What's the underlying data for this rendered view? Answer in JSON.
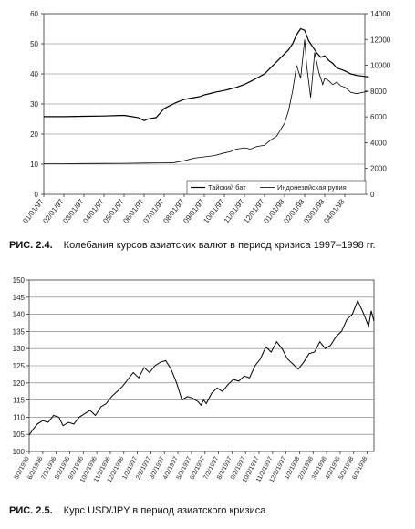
{
  "figure1": {
    "caption_number": "РИС. 2.4.",
    "caption_text": "Колебания курсов азиатских валют в период кризиса 1997–1998 гг.",
    "chart_data": {
      "type": "line",
      "x_labels": [
        "01/01/97",
        "02/01/97",
        "03/01/97",
        "04/01/97",
        "05/01/97",
        "06/01/97",
        "07/01/97",
        "08/01/97",
        "09/01/97",
        "10/01/97",
        "11/01/97",
        "12/01/97",
        "01/01/98",
        "02/01/98",
        "03/01/98",
        "04/01/98"
      ],
      "y_left": {
        "min": 0,
        "max": 60,
        "ticks": [
          0,
          10,
          20,
          30,
          40,
          50,
          60
        ]
      },
      "y_right": {
        "min": 0,
        "max": 14000,
        "ticks": [
          0,
          2000,
          4000,
          6000,
          8000,
          10000,
          12000,
          14000
        ]
      },
      "series": [
        {
          "name": "Тайский бат",
          "axis": "left",
          "x": [
            0,
            1,
            2,
            3,
            4,
            4.7,
            5,
            5.2,
            5.6,
            6,
            6.3,
            6.6,
            7,
            7.4,
            7.8,
            8,
            8.3,
            8.6,
            9,
            9.3,
            9.6,
            10,
            10.3,
            10.6,
            11,
            11.3,
            11.6,
            11.9,
            12.2,
            12.4,
            12.6,
            12.8,
            13,
            13.2,
            13.4,
            13.6,
            13.8,
            14,
            14.2,
            14.4,
            14.6,
            15,
            15.3,
            15.6,
            16.2
          ],
          "y": [
            25.8,
            25.8,
            25.9,
            26.0,
            26.2,
            25.5,
            24.5,
            25.0,
            25.5,
            28.5,
            29.5,
            30.5,
            31.5,
            32.0,
            32.5,
            33.0,
            33.5,
            34.0,
            34.5,
            35.0,
            35.5,
            36.5,
            37.5,
            38.5,
            40.0,
            42.0,
            44.0,
            46.0,
            48.0,
            50.0,
            53.0,
            55.0,
            54.5,
            51.0,
            49.0,
            47.0,
            45.5,
            46.0,
            44.5,
            43.5,
            42.0,
            41.0,
            40.0,
            39.5,
            39.0
          ]
        },
        {
          "name": "Индонезийская рупия",
          "axis": "right",
          "x": [
            0,
            1,
            2,
            3,
            4,
            5,
            6,
            6.5,
            7,
            7.5,
            8,
            8.5,
            9,
            9.3,
            9.6,
            10,
            10.3,
            10.6,
            11,
            11.3,
            11.6,
            11.8,
            12,
            12.2,
            12.4,
            12.6,
            12.8,
            13,
            13.1,
            13.3,
            13.5,
            13.7,
            13.9,
            14,
            14.2,
            14.4,
            14.6,
            14.8,
            15,
            15.3,
            15.6,
            16.2
          ],
          "y": [
            2360,
            2370,
            2380,
            2390,
            2400,
            2420,
            2430,
            2450,
            2600,
            2800,
            2900,
            3000,
            3200,
            3300,
            3500,
            3600,
            3500,
            3700,
            3800,
            4200,
            4500,
            5000,
            5500,
            6500,
            8000,
            10000,
            9000,
            12000,
            10000,
            7500,
            11000,
            9500,
            8500,
            9000,
            8800,
            8500,
            8700,
            8400,
            8300,
            7900,
            7800,
            8000
          ]
        }
      ],
      "legend_position": "bottom-right"
    }
  },
  "figure2": {
    "caption_number": "РИС. 2.5.",
    "caption_text": "Курс USD/JPY в период азиатского кризиса",
    "chart_data": {
      "type": "line",
      "x_labels": [
        "5/2/1996",
        "6/2/1996",
        "7/2/1996",
        "8/2/1996",
        "9/2/1996",
        "10/2/1996",
        "11/2/1996",
        "12/2/1996",
        "1/2/1997",
        "2/2/1997",
        "3/2/1997",
        "4/2/1997",
        "5/2/1997",
        "6/2/1997",
        "7/2/1997",
        "8/2/1997",
        "9/2/1997",
        "10/2/1997",
        "11/2/1997",
        "12/2/1997",
        "1/2/1998",
        "2/2/1998",
        "3/2/1998",
        "4/2/1998",
        "5/2/1998",
        "6/2/1998"
      ],
      "y_axis": {
        "min": 100,
        "max": 150,
        "ticks": [
          100,
          105,
          110,
          115,
          120,
          125,
          130,
          135,
          140,
          145,
          150
        ]
      },
      "series": [
        {
          "x": [
            0,
            0.3,
            0.6,
            1,
            1.4,
            1.8,
            2.2,
            2.5,
            2.9,
            3.3,
            3.7,
            4.1,
            4.5,
            4.9,
            5.3,
            5.7,
            6.1,
            6.5,
            6.9,
            7.3,
            7.7,
            8.1,
            8.5,
            8.9,
            9.3,
            9.7,
            10.1,
            10.5,
            10.9,
            11.3,
            11.7,
            12.1,
            12.5,
            12.7,
            12.9,
            13.1,
            13.5,
            13.9,
            14.3,
            14.7,
            15.1,
            15.5,
            15.9,
            16.3,
            16.7,
            17.1,
            17.5,
            17.9,
            18.3,
            18.7,
            19.1,
            19.5,
            19.9,
            20.3,
            20.7,
            21.1,
            21.5,
            21.9,
            22.3,
            22.7,
            23.1,
            23.5,
            23.9,
            24.3,
            24.7,
            25.1,
            25.3,
            25.5
          ],
          "y": [
            104.8,
            106.5,
            108.0,
            109.0,
            108.5,
            110.5,
            110.0,
            107.5,
            108.5,
            108.0,
            110.0,
            111.0,
            112.0,
            110.5,
            113.0,
            114.0,
            116.0,
            117.5,
            119.0,
            121.0,
            123.0,
            121.5,
            124.5,
            123.0,
            125.0,
            126.0,
            126.5,
            124.0,
            120.0,
            115.0,
            116.0,
            115.5,
            114.5,
            113.5,
            115.0,
            114.0,
            117.0,
            118.5,
            117.5,
            119.5,
            121.0,
            120.5,
            122.0,
            121.5,
            125.0,
            127.0,
            130.5,
            129.0,
            132.0,
            130.0,
            127.0,
            125.5,
            124.0,
            126.0,
            128.5,
            129.0,
            132.0,
            130.0,
            131.0,
            133.5,
            135.0,
            138.5,
            140.0,
            144.0,
            140.5,
            136.5,
            141.0,
            138.0
          ]
        }
      ]
    }
  }
}
